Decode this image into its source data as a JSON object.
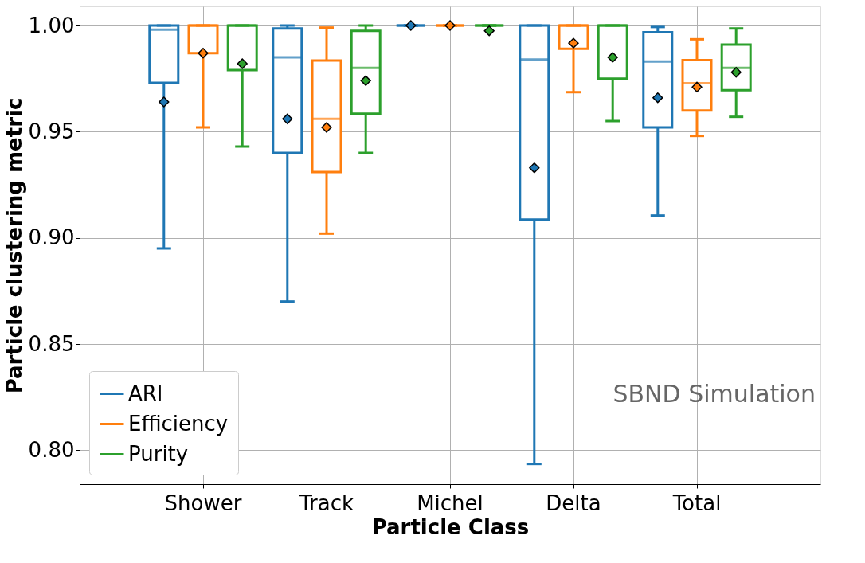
{
  "chart_data": {
    "type": "box",
    "xlabel": "Particle Class",
    "ylabel": "Particle clustering metric",
    "categories": [
      "Shower",
      "Track",
      "Michel",
      "Delta",
      "Total"
    ],
    "ylim": [
      0.784,
      1.009
    ],
    "yticks": [
      {
        "value": 0.8,
        "label": "0.80"
      },
      {
        "value": 0.85,
        "label": "0.85"
      },
      {
        "value": 0.9,
        "label": "0.90"
      },
      {
        "value": 0.95,
        "label": "0.95"
      },
      {
        "value": 1.0,
        "label": "1.00"
      }
    ],
    "grid": true,
    "legend": "bottom left",
    "marker": "diamond",
    "annotations": [
      "SBND Simulation"
    ],
    "series": [
      {
        "name": "ARI",
        "color": "#1f77b4",
        "boxes": [
          {
            "low": 0.895,
            "q1": 0.973,
            "median": 0.998,
            "q3": 1.0,
            "high": 1.0,
            "mean": 0.964
          },
          {
            "low": 0.87,
            "q1": 0.94,
            "median": 0.985,
            "q3": 0.9986,
            "high": 1.0,
            "mean": 0.956
          },
          {
            "low": 1.0,
            "q1": 1.0,
            "median": 1.0,
            "q3": 1.0,
            "high": 1.0,
            "mean": 1.0
          },
          {
            "low": 0.7935,
            "q1": 0.9086,
            "median": 0.984,
            "q3": 1.0,
            "high": 1.0,
            "mean": 0.933
          },
          {
            "low": 0.9105,
            "q1": 0.952,
            "median": 0.983,
            "q3": 0.9968,
            "high": 0.9993,
            "mean": 0.966
          }
        ]
      },
      {
        "name": "Efficiency",
        "color": "#ff7f0e",
        "boxes": [
          {
            "low": 0.952,
            "q1": 0.987,
            "median": 1.0,
            "q3": 1.0,
            "high": 1.0,
            "mean": 0.987
          },
          {
            "low": 0.902,
            "q1": 0.931,
            "median": 0.956,
            "q3": 0.9835,
            "high": 0.999,
            "mean": 0.952
          },
          {
            "low": 1.0,
            "q1": 1.0,
            "median": 1.0,
            "q3": 1.0,
            "high": 1.0,
            "mean": 1.0
          },
          {
            "low": 0.9686,
            "q1": 0.989,
            "median": 1.0,
            "q3": 1.0,
            "high": 1.0,
            "mean": 0.9917
          },
          {
            "low": 0.948,
            "q1": 0.96,
            "median": 0.9728,
            "q3": 0.9837,
            "high": 0.9935,
            "mean": 0.971
          }
        ]
      },
      {
        "name": "Purity",
        "color": "#2ca02c",
        "boxes": [
          {
            "low": 0.943,
            "q1": 0.979,
            "median": 1.0,
            "q3": 1.0,
            "high": 1.0,
            "mean": 0.982
          },
          {
            "low": 0.94,
            "q1": 0.9585,
            "median": 0.98,
            "q3": 0.9975,
            "high": 1.0,
            "mean": 0.974
          },
          {
            "low": 1.0,
            "q1": 1.0,
            "median": 1.0,
            "q3": 1.0,
            "high": 1.0,
            "mean": 0.9975
          },
          {
            "low": 0.955,
            "q1": 0.975,
            "median": 1.0,
            "q3": 1.0,
            "high": 1.0,
            "mean": 0.985
          },
          {
            "low": 0.957,
            "q1": 0.9695,
            "median": 0.98,
            "q3": 0.991,
            "high": 0.9986,
            "mean": 0.978
          }
        ]
      }
    ]
  }
}
